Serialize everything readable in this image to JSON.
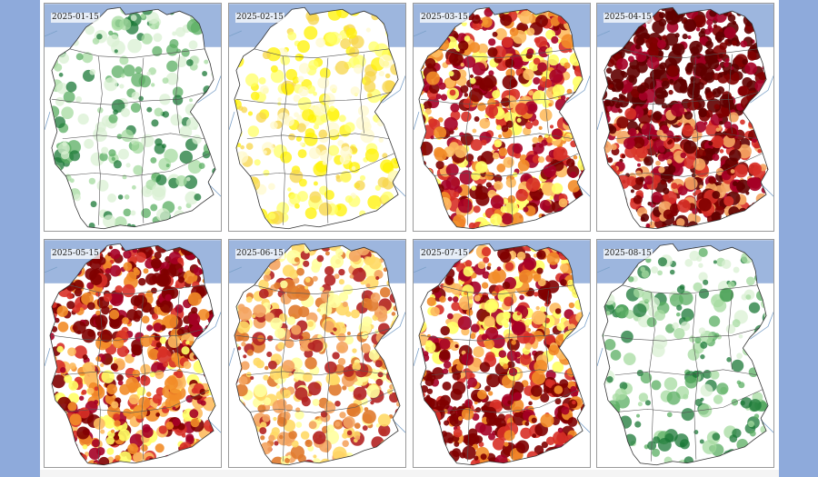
{
  "panels": [
    {
      "date": "2025-01-15",
      "palette": "wet"
    },
    {
      "date": "2025-02-15",
      "palette": "mild"
    },
    {
      "date": "2025-03-15",
      "palette": "dry"
    },
    {
      "date": "2025-04-15",
      "palette": "extreme"
    },
    {
      "date": "2025-05-15",
      "palette": "dry"
    },
    {
      "date": "2025-06-15",
      "palette": "moderate"
    },
    {
      "date": "2025-07-15",
      "palette": "dry"
    },
    {
      "date": "2025-08-15",
      "palette": "wet"
    }
  ],
  "colors": {
    "sea": "#9db6de",
    "land_background": "#ffffff",
    "border": "#555555",
    "river": "#7aa0c8",
    "wet": [
      "#d9f0d3",
      "#a6dba0",
      "#5aae61",
      "#1b7837"
    ],
    "mild": [
      "#fffacd",
      "#ffff66",
      "#fff200",
      "#f7d64a"
    ],
    "moderate": [
      "#ffffa0",
      "#ffd966",
      "#f4a460",
      "#e07a2e",
      "#b22222"
    ],
    "dry": [
      "#ffff66",
      "#fdbb5f",
      "#f28c28",
      "#d73027",
      "#a50026",
      "#7f0000"
    ],
    "extreme": [
      "#f4a460",
      "#d73027",
      "#a50026",
      "#7f0000",
      "#600000"
    ]
  }
}
